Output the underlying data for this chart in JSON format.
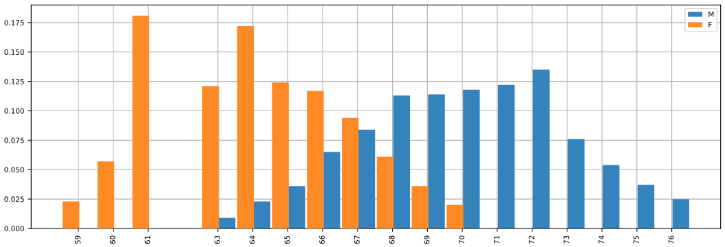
{
  "chart_data": {
    "type": "bar",
    "series": [
      {
        "name": "M",
        "color": "#3583bc",
        "x": [
          63,
          64,
          65,
          66,
          67,
          68,
          69,
          70,
          71,
          72,
          73,
          74,
          75,
          76
        ],
        "values": [
          0.009,
          0.023,
          0.036,
          0.065,
          0.084,
          0.113,
          0.114,
          0.118,
          0.122,
          0.135,
          0.076,
          0.054,
          0.037,
          0.025
        ]
      },
      {
        "name": "F",
        "color": "#fd8a25",
        "x": [
          59,
          60,
          61,
          63,
          64,
          65,
          66,
          67,
          68,
          69,
          70
        ],
        "values": [
          0.023,
          0.057,
          0.181,
          0.121,
          0.172,
          0.124,
          0.117,
          0.094,
          0.061,
          0.036,
          0.02
        ]
      }
    ],
    "xlim": [
      57.65,
      77.4
    ],
    "xticks": [
      59,
      60,
      61,
      63,
      64,
      65,
      66,
      67,
      68,
      69,
      70,
      71,
      72,
      73,
      74,
      75,
      76
    ],
    "ylim": [
      0,
      0.19
    ],
    "yticks": [
      {
        "value": 0,
        "label": "0.000"
      },
      {
        "value": 0.025,
        "label": "0.025"
      },
      {
        "value": 0.05,
        "label": "0.050"
      },
      {
        "value": 0.075,
        "label": "0.075"
      },
      {
        "value": 0.1,
        "label": "0.100"
      },
      {
        "value": 0.125,
        "label": "0.125"
      },
      {
        "value": 0.15,
        "label": "0.150"
      },
      {
        "value": 0.175,
        "label": "0.175"
      }
    ],
    "grid": true,
    "legend": "top right"
  }
}
